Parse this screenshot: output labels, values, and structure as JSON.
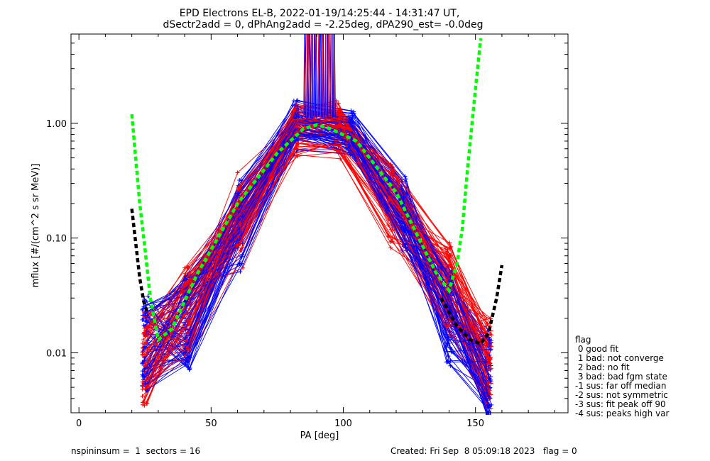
{
  "chart_data": {
    "type": "line",
    "title": "EPD Electrons EL-B, 2022-01-19/14:25:44 - 14:31:47 UT,",
    "subtitle": "dSectr2add = 0, dPhAng2add = -2.25deg, dPA290_est=  -0.0deg",
    "xlabel": "PA [deg]",
    "ylabel": "mflux [#/(cm^2 s sr MeV)]",
    "xlim": [
      -3,
      185
    ],
    "ylim": [
      0.003,
      6.0
    ],
    "yscale": "log",
    "x_ticks": [
      0,
      50,
      100,
      150
    ],
    "x_tick_labels": [
      "0",
      "50",
      "100",
      "150"
    ],
    "y_ticks": [
      0.01,
      0.1,
      1.0
    ],
    "y_tick_labels": [
      "0.01",
      "0.10",
      "1.00"
    ],
    "grid": false,
    "series": [
      {
        "role": "data-red-bundle",
        "color": "#ff0000",
        "marker": "plus",
        "x": [
          25,
          41,
          61,
          82,
          98,
          118,
          140,
          155
        ],
        "y": [
          0.009,
          0.022,
          0.15,
          0.82,
          0.85,
          0.2,
          0.035,
          0.008
        ]
      },
      {
        "role": "data-blue-bundle",
        "color": "#0000ff",
        "marker": "plus",
        "x": [
          25,
          41,
          61,
          82,
          103,
          123,
          140,
          155
        ],
        "y": [
          0.012,
          0.018,
          0.12,
          0.9,
          0.75,
          0.15,
          0.02,
          0.006
        ]
      },
      {
        "role": "fit-green",
        "color": "#00ff00",
        "style": "dashed",
        "x": [
          20,
          23,
          25,
          27,
          30,
          35,
          45,
          60,
          75,
          85,
          90,
          95,
          105,
          120,
          135,
          140,
          143,
          145,
          147,
          150,
          152
        ],
        "y": [
          1.2,
          0.2,
          0.08,
          0.03,
          0.013,
          0.016,
          0.05,
          0.2,
          0.55,
          0.9,
          0.97,
          0.9,
          0.7,
          0.25,
          0.05,
          0.035,
          0.06,
          0.12,
          0.4,
          2.0,
          5.5
        ]
      },
      {
        "role": "fit-black",
        "color": "#000000",
        "style": "dashed",
        "x": [
          20,
          21.5,
          23,
          24.5,
          26
        ],
        "y": [
          0.18,
          0.09,
          0.045,
          0.028,
          0.022
        ],
        "x2": [
          137,
          143,
          148,
          152,
          155,
          158,
          160
        ],
        "y2": [
          0.03,
          0.017,
          0.013,
          0.012,
          0.015,
          0.03,
          0.058
        ]
      },
      {
        "role": "saturated-spike",
        "colors": [
          "#0000ff",
          "#ff0000"
        ],
        "x_range": [
          85,
          97
        ],
        "y_from": 1.2,
        "y_to": 6.0
      }
    ]
  },
  "legend": {
    "title": "flag",
    "items": [
      " 0 good fit",
      " 1 bad: not converge",
      " 2 bad: no fit",
      " 3 bad: bad fgm state",
      "-1 sus: far off median",
      "-2 sus: not symmetric",
      "-3 sus: fit peak off 90",
      "-4 sus: peaks high var"
    ]
  },
  "footer": {
    "left": "nspininsum =  1  sectors = 16",
    "right": "Created: Fri Sep  8 05:09:18 2023   flag = 0"
  }
}
